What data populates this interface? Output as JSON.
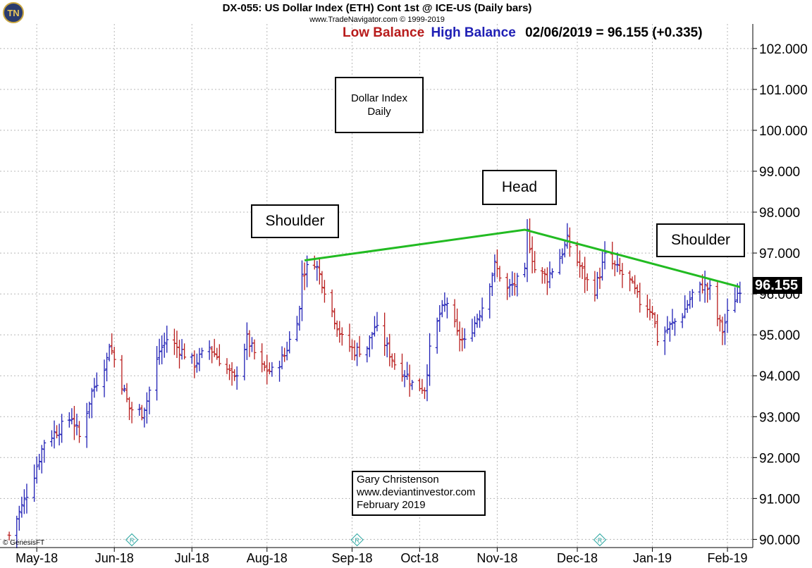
{
  "header": {
    "title": "DX-055:  US Dollar Index (ETH) Cont 1st @ ICE-US  (Daily bars)",
    "copyright": "www.TradeNavigator.com © 1999-2019",
    "low_balance": "Low Balance",
    "high_balance": "High Balance",
    "last_price": "02/06/2019 = 96.155 (+0.335)"
  },
  "annotations": {
    "dollar_index_line1": "Dollar Index",
    "dollar_index_line2": "Daily",
    "shoulder_left": "Shoulder",
    "head": "Head",
    "shoulder_right": "Shoulder",
    "credit_line1": "Gary Christenson",
    "credit_line2": "www.deviantinvestor.com",
    "credit_line3": "February 2019",
    "genesis": "© GenesisFT",
    "logo": "TN",
    "price_tag": "96.155"
  },
  "colors": {
    "up_bar": "#1f1fb5",
    "down_bar": "#b81c1c",
    "neckline": "#22bb22",
    "grid": "#b8b8b8",
    "roll_marker": "#2aa6a0"
  },
  "chart_data": {
    "type": "line",
    "subtype": "ohlc-daily-bars",
    "title": "DX-055:  US Dollar Index (ETH) Cont 1st @ ICE-US  (Daily bars)",
    "xlabel": "",
    "ylabel": "",
    "ylim": [
      89.8,
      102.6
    ],
    "grid": true,
    "y_ticks": [
      "90.000",
      "91.000",
      "92.000",
      "93.000",
      "94.000",
      "95.000",
      "96.000",
      "97.000",
      "98.000",
      "99.000",
      "100.000",
      "101.000",
      "102.000"
    ],
    "x_ticks": [
      {
        "label": "May-18",
        "date": "2018-05-01"
      },
      {
        "label": "Jun-18",
        "date": "2018-06-01"
      },
      {
        "label": "Jul-18",
        "date": "2018-07-02"
      },
      {
        "label": "Aug-18",
        "date": "2018-08-01"
      },
      {
        "label": "Sep-18",
        "date": "2018-09-04"
      },
      {
        "label": "Oct-18",
        "date": "2018-10-01"
      },
      {
        "label": "Nov-18",
        "date": "2018-11-01"
      },
      {
        "label": "Dec-18",
        "date": "2018-12-03"
      },
      {
        "label": "Jan-19",
        "date": "2019-01-02"
      },
      {
        "label": "Feb-19",
        "date": "2019-02-01"
      }
    ],
    "series": [
      {
        "name": "US Dollar Index close",
        "points": [
          {
            "date": "2018-04-20",
            "value": 90.1
          },
          {
            "date": "2018-04-25",
            "value": 90.8
          },
          {
            "date": "2018-04-30",
            "value": 91.6
          },
          {
            "date": "2018-05-04",
            "value": 92.4
          },
          {
            "date": "2018-05-10",
            "value": 92.7
          },
          {
            "date": "2018-05-15",
            "value": 93.0
          },
          {
            "date": "2018-05-18",
            "value": 92.5
          },
          {
            "date": "2018-05-23",
            "value": 93.6
          },
          {
            "date": "2018-05-29",
            "value": 94.4
          },
          {
            "date": "2018-05-30",
            "value": 94.8
          },
          {
            "date": "2018-06-04",
            "value": 93.8
          },
          {
            "date": "2018-06-07",
            "value": 93.2
          },
          {
            "date": "2018-06-12",
            "value": 93.1
          },
          {
            "date": "2018-06-14",
            "value": 93.4
          },
          {
            "date": "2018-06-19",
            "value": 94.6
          },
          {
            "date": "2018-06-22",
            "value": 94.9
          },
          {
            "date": "2018-06-28",
            "value": 94.6
          },
          {
            "date": "2018-07-03",
            "value": 94.3
          },
          {
            "date": "2018-07-09",
            "value": 94.7
          },
          {
            "date": "2018-07-13",
            "value": 94.4
          },
          {
            "date": "2018-07-19",
            "value": 93.9
          },
          {
            "date": "2018-07-24",
            "value": 94.9
          },
          {
            "date": "2018-07-30",
            "value": 94.2
          },
          {
            "date": "2018-08-03",
            "value": 94.1
          },
          {
            "date": "2018-08-08",
            "value": 94.5
          },
          {
            "date": "2018-08-14",
            "value": 95.6
          },
          {
            "date": "2018-08-15",
            "value": 96.5
          },
          {
            "date": "2018-08-20",
            "value": 96.8
          },
          {
            "date": "2018-08-23",
            "value": 96.3
          },
          {
            "date": "2018-08-28",
            "value": 95.4
          },
          {
            "date": "2018-08-31",
            "value": 94.9
          },
          {
            "date": "2018-09-05",
            "value": 94.6
          },
          {
            "date": "2018-09-10",
            "value": 94.7
          },
          {
            "date": "2018-09-13",
            "value": 95.2
          },
          {
            "date": "2018-09-17",
            "value": 94.8
          },
          {
            "date": "2018-09-21",
            "value": 94.3
          },
          {
            "date": "2018-09-26",
            "value": 94.0
          },
          {
            "date": "2018-09-28",
            "value": 93.8
          },
          {
            "date": "2018-10-03",
            "value": 93.7
          },
          {
            "date": "2018-10-05",
            "value": 94.6
          },
          {
            "date": "2018-10-09",
            "value": 95.5
          },
          {
            "date": "2018-10-12",
            "value": 95.8
          },
          {
            "date": "2018-10-16",
            "value": 95.0
          },
          {
            "date": "2018-10-19",
            "value": 94.8
          },
          {
            "date": "2018-10-23",
            "value": 95.3
          },
          {
            "date": "2018-10-26",
            "value": 95.7
          },
          {
            "date": "2018-10-31",
            "value": 96.7
          },
          {
            "date": "2018-11-05",
            "value": 96.1
          },
          {
            "date": "2018-11-09",
            "value": 96.3
          },
          {
            "date": "2018-11-12",
            "value": 96.5
          },
          {
            "date": "2018-11-13",
            "value": 97.5
          },
          {
            "date": "2018-11-16",
            "value": 96.6
          },
          {
            "date": "2018-11-21",
            "value": 96.4
          },
          {
            "date": "2018-11-26",
            "value": 96.9
          },
          {
            "date": "2018-11-29",
            "value": 97.3
          },
          {
            "date": "2018-12-03",
            "value": 96.8
          },
          {
            "date": "2018-12-07",
            "value": 96.3
          },
          {
            "date": "2018-12-10",
            "value": 96.1
          },
          {
            "date": "2018-12-14",
            "value": 96.9
          },
          {
            "date": "2018-12-19",
            "value": 96.6
          },
          {
            "date": "2018-12-24",
            "value": 96.3
          },
          {
            "date": "2018-12-28",
            "value": 95.8
          },
          {
            "date": "2019-01-02",
            "value": 95.6
          },
          {
            "date": "2019-01-04",
            "value": 94.9
          },
          {
            "date": "2019-01-09",
            "value": 95.2
          },
          {
            "date": "2019-01-14",
            "value": 95.5
          },
          {
            "date": "2019-01-18",
            "value": 96.0
          },
          {
            "date": "2019-01-22",
            "value": 96.2
          },
          {
            "date": "2019-01-25",
            "value": 96.1
          },
          {
            "date": "2019-01-28",
            "value": 95.4
          },
          {
            "date": "2019-01-30",
            "value": 95.1
          },
          {
            "date": "2019-02-01",
            "value": 95.5
          },
          {
            "date": "2019-02-06",
            "value": 96.155
          }
        ]
      },
      {
        "name": "Neckline",
        "points": [
          {
            "date": "2018-08-16",
            "value": 96.82
          },
          {
            "date": "2018-11-12",
            "value": 97.57
          },
          {
            "date": "2019-02-06",
            "value": 96.17
          }
        ]
      }
    ],
    "roll_markers": [
      "2018-06-08",
      "2018-09-06",
      "2018-12-12"
    ],
    "last_value": 96.155
  }
}
